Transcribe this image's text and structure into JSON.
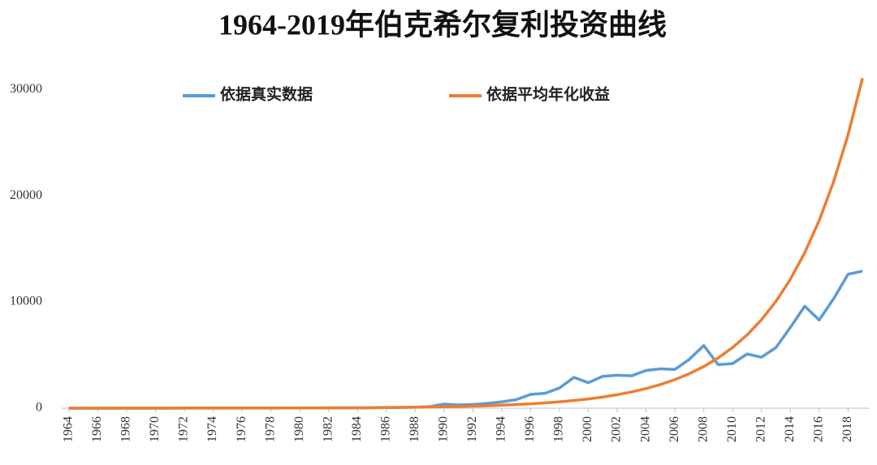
{
  "chart_data": {
    "type": "line",
    "title": "1964-2019年伯克希尔复利投资曲线",
    "x": [
      1964,
      1965,
      1966,
      1967,
      1968,
      1969,
      1970,
      1971,
      1972,
      1973,
      1974,
      1975,
      1976,
      1977,
      1978,
      1979,
      1980,
      1981,
      1982,
      1983,
      1984,
      1985,
      1986,
      1987,
      1988,
      1989,
      1990,
      1991,
      1992,
      1993,
      1994,
      1995,
      1996,
      1997,
      1998,
      1999,
      2000,
      2001,
      2002,
      2003,
      2004,
      2005,
      2006,
      2007,
      2008,
      2009,
      2010,
      2011,
      2012,
      2013,
      2014,
      2015,
      2016,
      2017,
      2018,
      2019
    ],
    "series": [
      {
        "name": "依据真实数据",
        "color": "#5b9bd5",
        "values": [
          1,
          2,
          3,
          4,
          5,
          6,
          7,
          8,
          9,
          10,
          12,
          14,
          16,
          18,
          20,
          22,
          25,
          28,
          32,
          36,
          40,
          45,
          55,
          70,
          100,
          150,
          380,
          300,
          350,
          450,
          600,
          800,
          1300,
          1400,
          1900,
          2900,
          2400,
          3000,
          3100,
          3050,
          3550,
          3700,
          3650,
          4600,
          5900,
          4100,
          4200,
          5100,
          4800,
          5700,
          7600,
          9600,
          8300,
          10300,
          12600,
          12900
        ]
      },
      {
        "name": "依据平均年化收益",
        "color": "#ed7d31",
        "values": [
          1,
          1,
          1,
          2,
          2,
          3,
          3,
          4,
          5,
          5,
          7,
          8,
          10,
          12,
          14,
          17,
          20,
          24,
          30,
          36,
          43,
          52,
          63,
          76,
          91,
          110,
          133,
          160,
          194,
          234,
          282,
          340,
          411,
          496,
          598,
          722,
          871,
          1051,
          1269,
          1532,
          1849,
          2231,
          2693,
          3250,
          3923,
          4735,
          5714,
          6897,
          8324,
          10047,
          12126,
          14635,
          17664,
          21319,
          25731,
          31056
        ]
      }
    ],
    "xlim": [
      1963.5,
      2019.5
    ],
    "xticks": [
      1964,
      1966,
      1968,
      1970,
      1972,
      1974,
      1976,
      1978,
      1980,
      1982,
      1984,
      1986,
      1988,
      1990,
      1992,
      1994,
      1996,
      1998,
      2000,
      2002,
      2004,
      2006,
      2008,
      2010,
      2012,
      2014,
      2016,
      2018
    ],
    "ylim": [
      0,
      32000
    ],
    "yticks": [
      0,
      10000,
      20000,
      30000
    ],
    "grid": false
  }
}
